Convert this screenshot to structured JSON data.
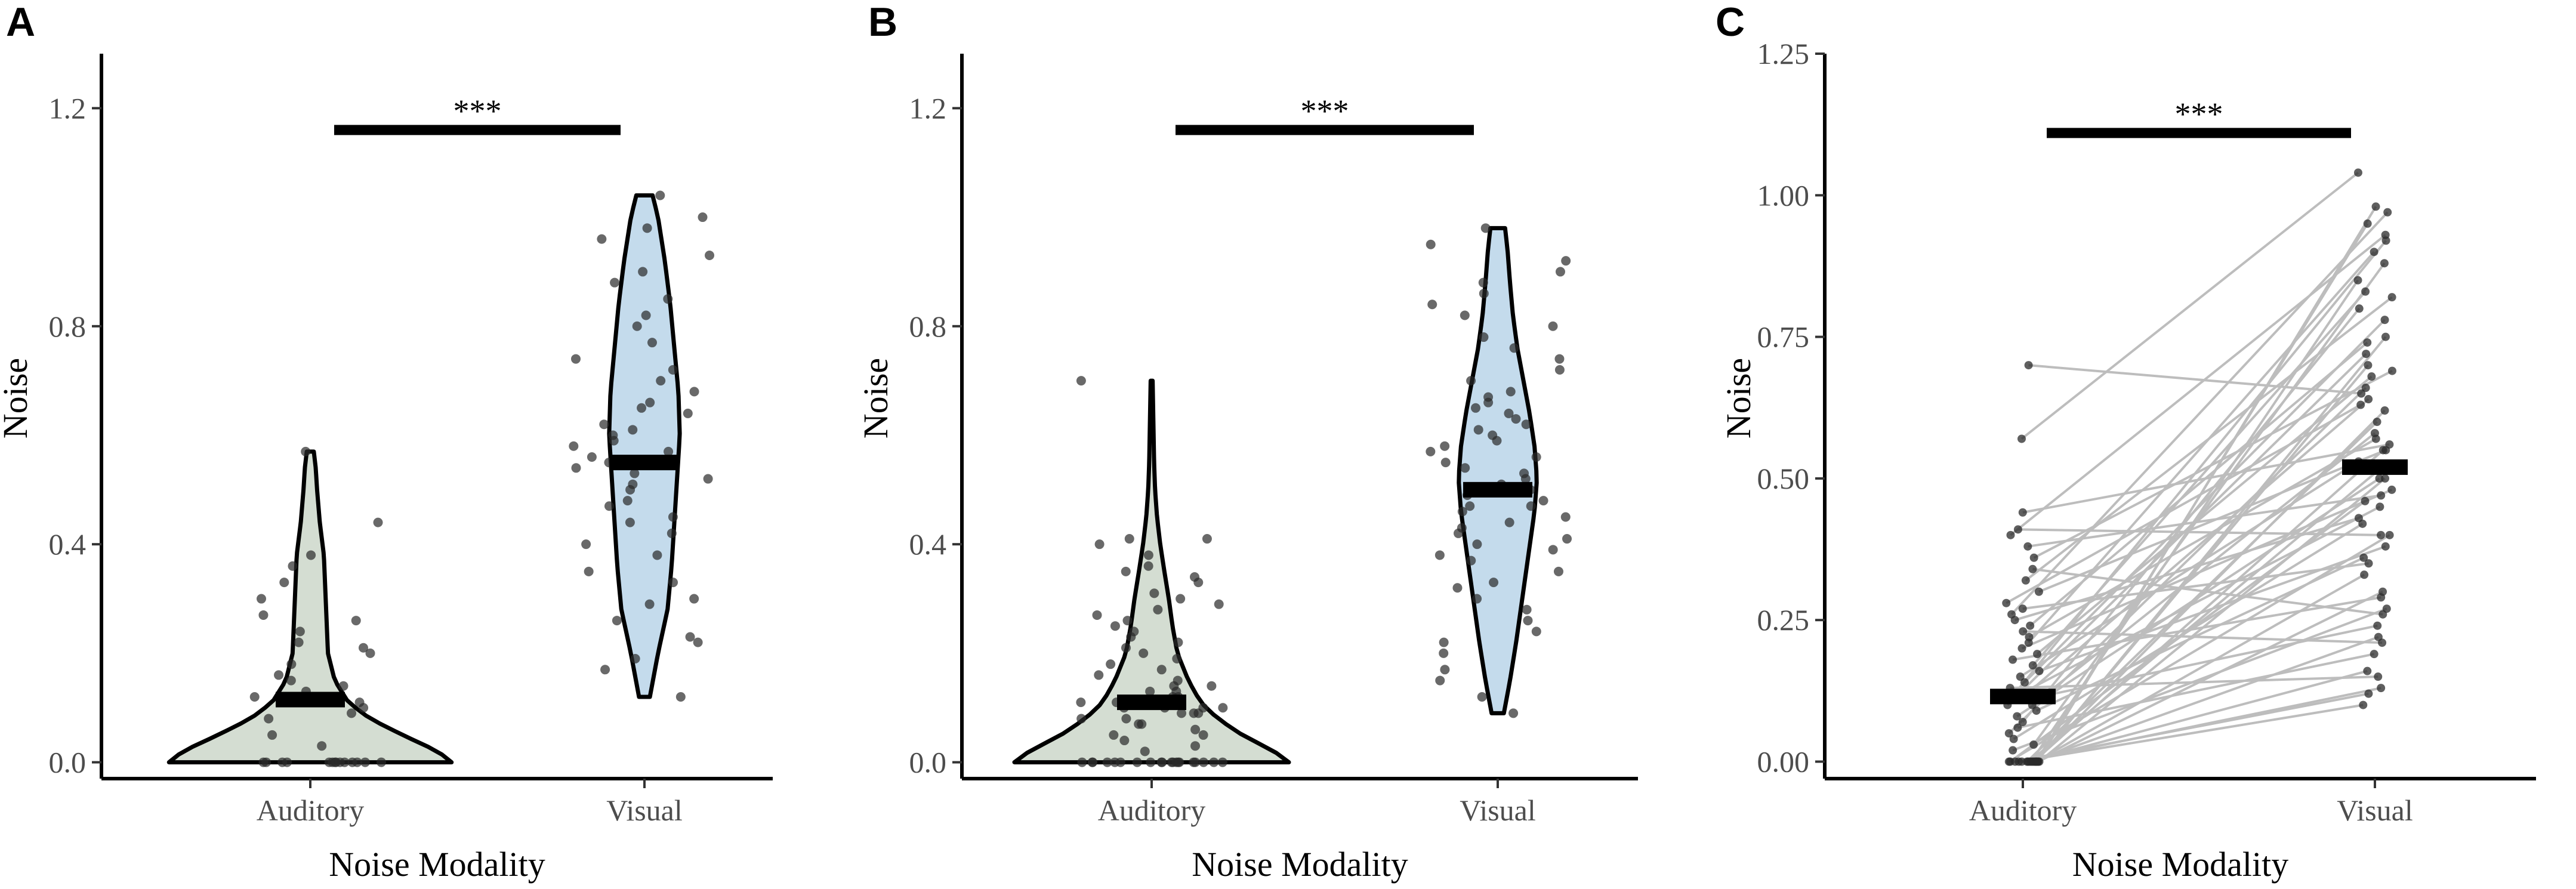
{
  "chart_data": [
    {
      "panel": "A",
      "type": "violin",
      "xlabel": "Noise Modality",
      "ylabel": "Noise",
      "categories": [
        "Auditory",
        "Visual"
      ],
      "ylim": [
        -0.03,
        1.3
      ],
      "yticks": [
        0.0,
        0.4,
        0.8,
        1.2
      ],
      "ytick_labels": [
        "0.0",
        "0.4",
        "0.8",
        "1.2"
      ],
      "significance": {
        "label": "***",
        "y": 1.16,
        "from": "Auditory",
        "to": "Visual"
      },
      "fill_colors": [
        "#d4ddd2",
        "#c4dbec"
      ],
      "medians": [
        0.115,
        0.55
      ],
      "series": [
        {
          "name": "Auditory",
          "range": [
            0.0,
            0.57
          ],
          "profile": [
            [
              0.0,
              0.52
            ],
            [
              0.02,
              0.47
            ],
            [
              0.05,
              0.34
            ],
            [
              0.08,
              0.22
            ],
            [
              0.11,
              0.14
            ],
            [
              0.15,
              0.09
            ],
            [
              0.2,
              0.065
            ],
            [
              0.26,
              0.06
            ],
            [
              0.32,
              0.055
            ],
            [
              0.38,
              0.05
            ],
            [
              0.44,
              0.035
            ],
            [
              0.5,
              0.025
            ],
            [
              0.54,
              0.02
            ],
            [
              0.57,
              0.013
            ]
          ],
          "points": [
            0,
            0,
            0,
            0,
            0,
            0,
            0,
            0,
            0,
            0,
            0,
            0,
            0,
            0,
            0.03,
            0.05,
            0.08,
            0.09,
            0.1,
            0.11,
            0.12,
            0.13,
            0.14,
            0.15,
            0.16,
            0.18,
            0.2,
            0.21,
            0.22,
            0.24,
            0.26,
            0.27,
            0.3,
            0.33,
            0.36,
            0.38,
            0.44,
            0.57
          ]
        },
        {
          "name": "Visual",
          "range": [
            0.12,
            1.04
          ],
          "profile": [
            [
              0.12,
              0.02
            ],
            [
              0.2,
              0.05
            ],
            [
              0.28,
              0.085
            ],
            [
              0.36,
              0.1
            ],
            [
              0.44,
              0.11
            ],
            [
              0.52,
              0.12
            ],
            [
              0.6,
              0.13
            ],
            [
              0.68,
              0.125
            ],
            [
              0.76,
              0.11
            ],
            [
              0.84,
              0.095
            ],
            [
              0.92,
              0.075
            ],
            [
              1.0,
              0.05
            ],
            [
              1.04,
              0.03
            ]
          ],
          "points": [
            0.12,
            0.17,
            0.19,
            0.22,
            0.23,
            0.26,
            0.29,
            0.3,
            0.33,
            0.35,
            0.38,
            0.4,
            0.42,
            0.44,
            0.45,
            0.47,
            0.48,
            0.5,
            0.51,
            0.52,
            0.53,
            0.54,
            0.55,
            0.56,
            0.57,
            0.58,
            0.59,
            0.6,
            0.61,
            0.62,
            0.64,
            0.65,
            0.66,
            0.68,
            0.7,
            0.72,
            0.74,
            0.77,
            0.8,
            0.82,
            0.85,
            0.88,
            0.9,
            0.93,
            0.96,
            0.98,
            1.0,
            1.04
          ]
        }
      ]
    },
    {
      "panel": "B",
      "type": "violin",
      "xlabel": "Noise Modality",
      "ylabel": "Noise",
      "categories": [
        "Auditory",
        "Visual"
      ],
      "ylim": [
        -0.03,
        1.3
      ],
      "yticks": [
        0.0,
        0.4,
        0.8,
        1.2
      ],
      "ytick_labels": [
        "0.0",
        "0.4",
        "0.8",
        "1.2"
      ],
      "significance": {
        "label": "***",
        "y": 1.16,
        "from": "Auditory",
        "to": "Visual"
      },
      "fill_colors": [
        "#d4ddd2",
        "#c4dbec"
      ],
      "medians": [
        0.11,
        0.5
      ],
      "series": [
        {
          "name": "Auditory",
          "range": [
            0.0,
            0.7
          ],
          "profile": [
            [
              0.0,
              0.56
            ],
            [
              0.02,
              0.5
            ],
            [
              0.05,
              0.37
            ],
            [
              0.08,
              0.27
            ],
            [
              0.11,
              0.2
            ],
            [
              0.15,
              0.15
            ],
            [
              0.2,
              0.105
            ],
            [
              0.25,
              0.085
            ],
            [
              0.3,
              0.07
            ],
            [
              0.35,
              0.052
            ],
            [
              0.4,
              0.035
            ],
            [
              0.45,
              0.022
            ],
            [
              0.5,
              0.014
            ],
            [
              0.55,
              0.01
            ],
            [
              0.6,
              0.008
            ],
            [
              0.65,
              0.006
            ],
            [
              0.7,
              0.004
            ]
          ],
          "points": [
            0,
            0,
            0,
            0,
            0,
            0,
            0,
            0,
            0,
            0,
            0,
            0,
            0,
            0,
            0,
            0,
            0,
            0,
            0,
            0,
            0.02,
            0.03,
            0.04,
            0.05,
            0.05,
            0.06,
            0.07,
            0.07,
            0.08,
            0.08,
            0.09,
            0.09,
            0.09,
            0.1,
            0.1,
            0.1,
            0.1,
            0.11,
            0.11,
            0.11,
            0.12,
            0.12,
            0.13,
            0.13,
            0.14,
            0.14,
            0.15,
            0.16,
            0.17,
            0.18,
            0.19,
            0.2,
            0.21,
            0.22,
            0.23,
            0.24,
            0.25,
            0.26,
            0.27,
            0.28,
            0.29,
            0.3,
            0.31,
            0.33,
            0.34,
            0.35,
            0.36,
            0.38,
            0.4,
            0.41,
            0.41,
            0.7
          ]
        },
        {
          "name": "Visual",
          "range": [
            0.09,
            0.98
          ],
          "profile": [
            [
              0.09,
              0.025
            ],
            [
              0.15,
              0.05
            ],
            [
              0.22,
              0.075
            ],
            [
              0.3,
              0.1
            ],
            [
              0.38,
              0.125
            ],
            [
              0.46,
              0.15
            ],
            [
              0.52,
              0.16
            ],
            [
              0.58,
              0.15
            ],
            [
              0.64,
              0.13
            ],
            [
              0.7,
              0.105
            ],
            [
              0.76,
              0.08
            ],
            [
              0.82,
              0.062
            ],
            [
              0.88,
              0.05
            ],
            [
              0.94,
              0.04
            ],
            [
              0.98,
              0.03
            ]
          ],
          "points": [
            0.09,
            0.12,
            0.15,
            0.17,
            0.2,
            0.22,
            0.24,
            0.26,
            0.28,
            0.3,
            0.32,
            0.33,
            0.35,
            0.37,
            0.38,
            0.39,
            0.4,
            0.41,
            0.42,
            0.43,
            0.44,
            0.45,
            0.46,
            0.47,
            0.47,
            0.48,
            0.49,
            0.5,
            0.5,
            0.51,
            0.52,
            0.53,
            0.54,
            0.55,
            0.56,
            0.57,
            0.58,
            0.59,
            0.6,
            0.61,
            0.62,
            0.63,
            0.64,
            0.65,
            0.66,
            0.67,
            0.68,
            0.7,
            0.72,
            0.74,
            0.76,
            0.78,
            0.8,
            0.82,
            0.84,
            0.86,
            0.88,
            0.9,
            0.92,
            0.95,
            0.98
          ]
        }
      ]
    },
    {
      "panel": "C",
      "type": "paired-line",
      "xlabel": "Noise Modality",
      "ylabel": "Noise",
      "categories": [
        "Auditory",
        "Visual"
      ],
      "ylim": [
        -0.03,
        1.25
      ],
      "yticks": [
        0.0,
        0.25,
        0.5,
        0.75,
        1.0,
        1.25
      ],
      "ytick_labels": [
        "0.00",
        "0.25",
        "0.50",
        "0.75",
        "1.00",
        "1.25"
      ],
      "significance": {
        "label": "***",
        "y": 1.11,
        "from": "Auditory",
        "to": "Visual"
      },
      "line_color": "#bdbdbd",
      "medians": [
        0.115,
        0.52
      ],
      "auditory": [
        0,
        0,
        0,
        0,
        0,
        0,
        0,
        0,
        0,
        0,
        0,
        0,
        0,
        0,
        0,
        0,
        0,
        0,
        0,
        0.02,
        0.03,
        0.04,
        0.05,
        0.06,
        0.07,
        0.08,
        0.09,
        0.1,
        0.1,
        0.11,
        0.11,
        0.12,
        0.12,
        0.13,
        0.14,
        0.15,
        0.16,
        0.17,
        0.18,
        0.19,
        0.2,
        0.21,
        0.22,
        0.23,
        0.24,
        0.25,
        0.26,
        0.27,
        0.28,
        0.3,
        0.32,
        0.34,
        0.36,
        0.38,
        0.4,
        0.41,
        0.44,
        0.57,
        0.7
      ],
      "visual": [
        0.1,
        0.95,
        0.3,
        0.5,
        0.13,
        0.7,
        0.22,
        0.6,
        0.4,
        0.85,
        0.16,
        0.55,
        0.98,
        0.33,
        0.46,
        0.75,
        0.12,
        0.62,
        0.52,
        0.27,
        0.88,
        0.42,
        0.66,
        0.19,
        0.8,
        0.5,
        0.36,
        0.72,
        0.58,
        0.24,
        0.92,
        0.45,
        0.64,
        0.15,
        0.78,
        0.53,
        0.38,
        0.83,
        0.29,
        0.68,
        0.48,
        0.9,
        0.57,
        0.21,
        0.74,
        0.43,
        0.97,
        0.35,
        0.63,
        0.55,
        0.82,
        0.26,
        0.69,
        0.47,
        0.93,
        0.4,
        0.56,
        1.04,
        0.65
      ]
    }
  ]
}
